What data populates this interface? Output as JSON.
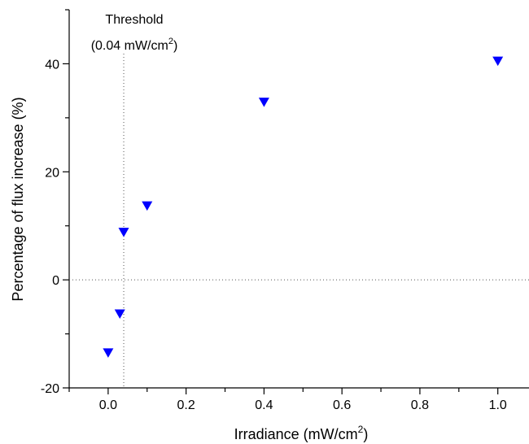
{
  "chart_data": {
    "type": "scatter",
    "xlabel": "Irradiance (mW/cm",
    "xlabel_sup": "2",
    "xlabel_end": ")",
    "ylabel": "Percentage of flux increase (%)",
    "xlim": [
      -0.1,
      1.08
    ],
    "ylim": [
      -20,
      50
    ],
    "xticks": [
      0.0,
      0.2,
      0.4,
      0.6,
      0.8,
      1.0
    ],
    "xtick_labels": [
      "0.0",
      "0.2",
      "0.4",
      "0.6",
      "0.8",
      "1.0"
    ],
    "yticks": [
      -20,
      0,
      20,
      40
    ],
    "ytick_labels": [
      "-20",
      "0",
      "20",
      "40"
    ],
    "grid": false,
    "marker": "down-triangle",
    "marker_color": "#0000ff",
    "points": [
      {
        "x": 0.0,
        "y": -13.5
      },
      {
        "x": 0.03,
        "y": -6.3
      },
      {
        "x": 0.04,
        "y": 8.8
      },
      {
        "x": 0.1,
        "y": 13.7
      },
      {
        "x": 0.4,
        "y": 32.9
      },
      {
        "x": 1.0,
        "y": 40.5
      }
    ],
    "threshold": {
      "x": 0.04,
      "label_line1": "Threshold",
      "label_line2": "(0.04 mW/cm",
      "label_sup": "2",
      "label_end": ")"
    },
    "zero_line": {
      "y": 0
    }
  }
}
